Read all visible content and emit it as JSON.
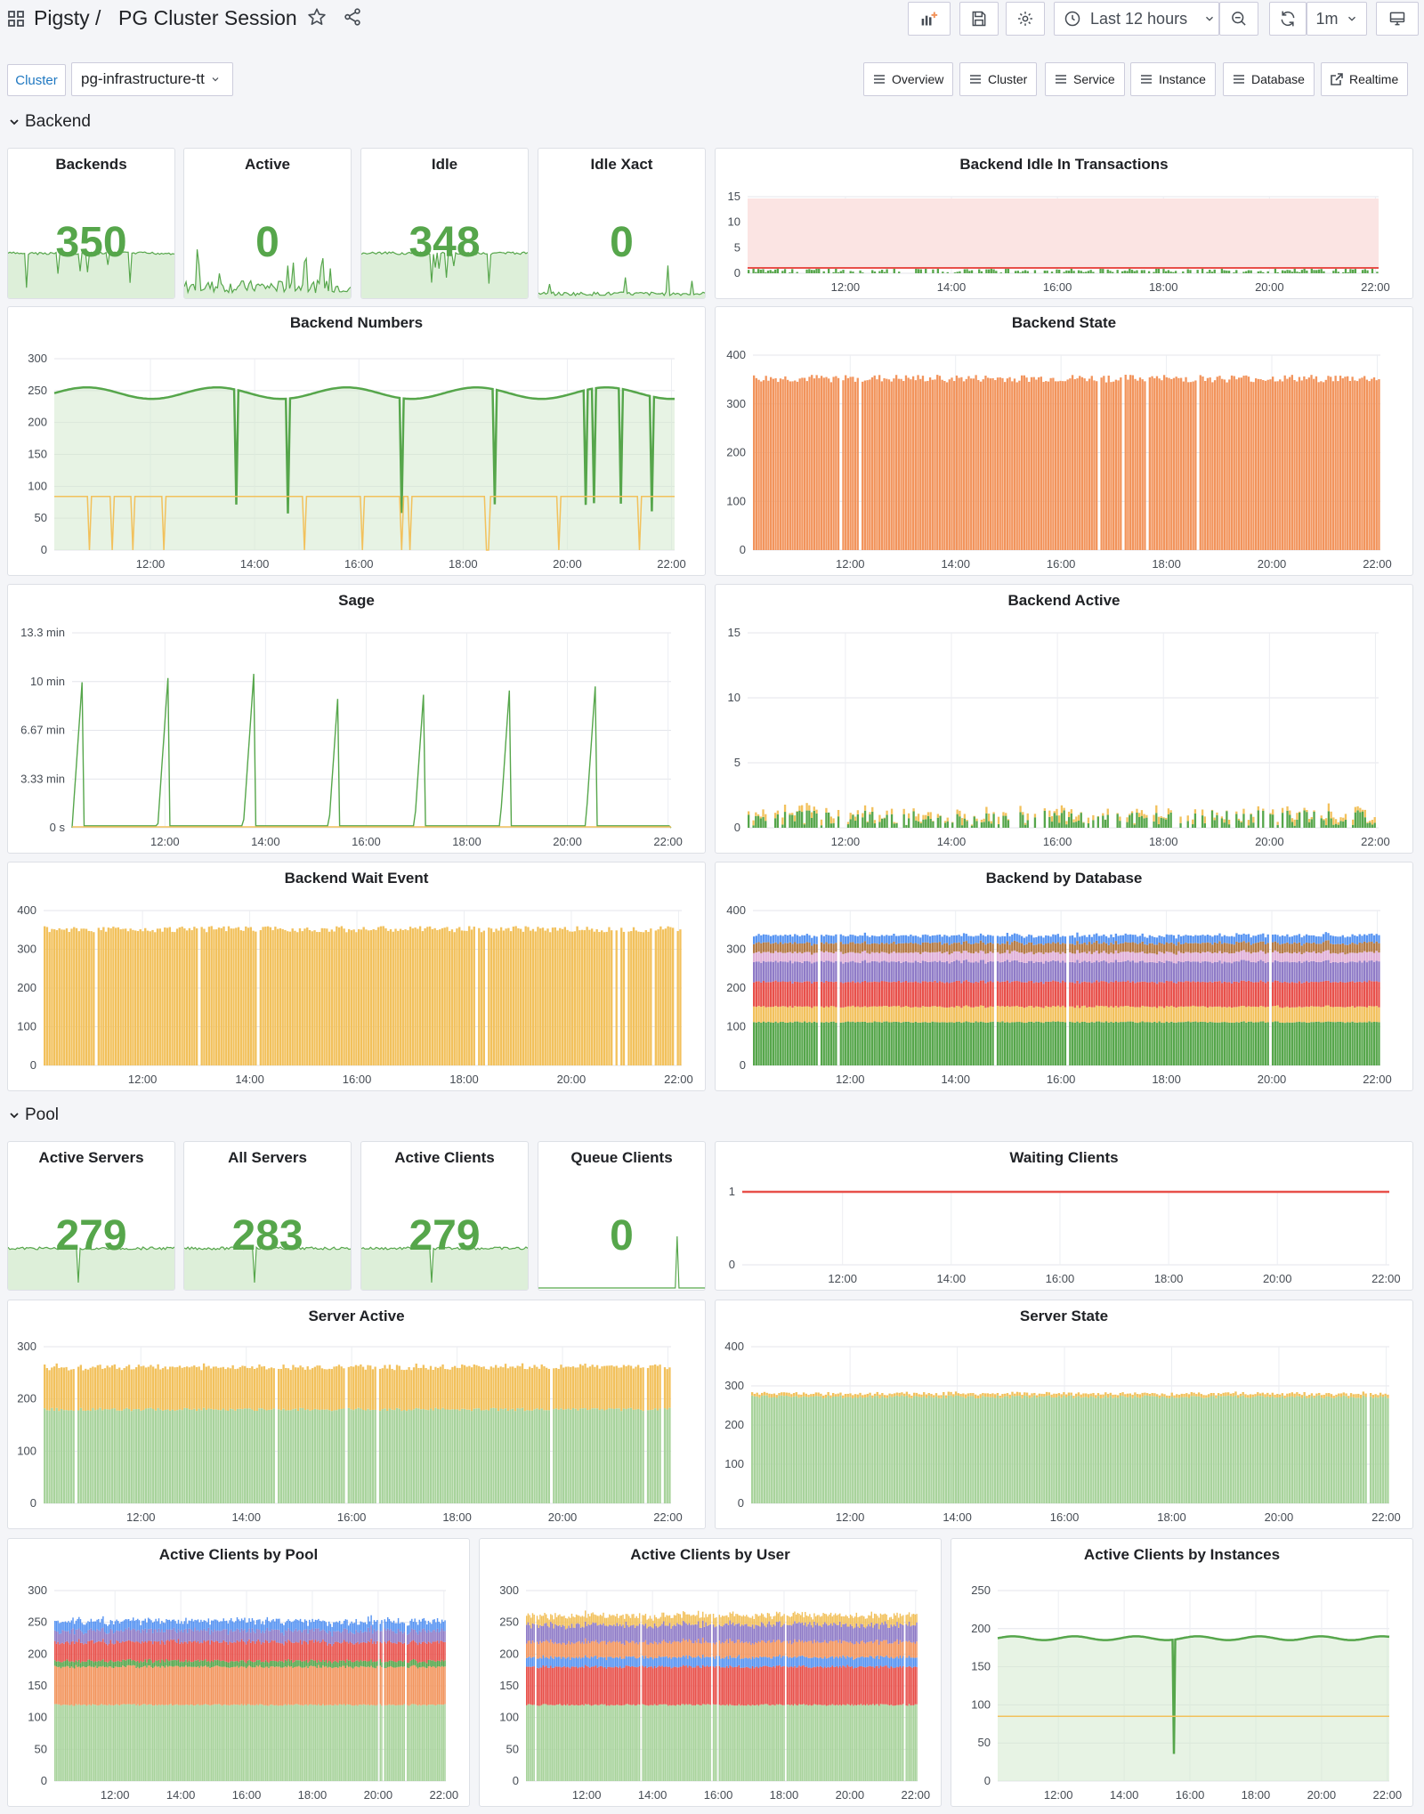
{
  "header": {
    "app_name": "Pigsty",
    "separator": "/",
    "dashboard_title": "PG Cluster Session",
    "time_range": "Last 12 hours",
    "refresh": "1m"
  },
  "variables": {
    "cluster_label": "Cluster",
    "cluster_value": "pg-infrastructure-tt"
  },
  "links": [
    "Overview",
    "Cluster",
    "Service",
    "Instance",
    "Database",
    "Realtime"
  ],
  "rows": {
    "backend": "Backend",
    "pool": "Pool"
  },
  "colors": {
    "green": "#56a64b",
    "green_fill": "#cfe8c9",
    "orange": "#f2945c",
    "yellow": "#f2c15c",
    "red": "#e8504a",
    "purple": "#8f7bc7",
    "blue": "#5794f2"
  },
  "time_ticks": [
    "12:00",
    "14:00",
    "16:00",
    "18:00",
    "20:00",
    "22:00"
  ],
  "stats": {
    "backends": {
      "title": "Backends",
      "value": "350"
    },
    "active": {
      "title": "Active",
      "value": "0"
    },
    "idle": {
      "title": "Idle",
      "value": "348"
    },
    "idle_xact": {
      "title": "Idle Xact",
      "value": "0"
    },
    "active_servers": {
      "title": "Active Servers",
      "value": "279"
    },
    "all_servers": {
      "title": "All Servers",
      "value": "283"
    },
    "active_clients": {
      "title": "Active Clients",
      "value": "279"
    },
    "queue_clients": {
      "title": "Queue Clients",
      "value": "0"
    }
  },
  "panels": {
    "idle_in_tx": {
      "title": "Backend Idle In Transactions",
      "y_ticks": [
        "0",
        "5",
        "10",
        "15"
      ]
    },
    "backend_numbers": {
      "title": "Backend Numbers",
      "y_ticks": [
        "0",
        "50",
        "100",
        "150",
        "200",
        "250",
        "300"
      ]
    },
    "backend_state": {
      "title": "Backend State",
      "y_ticks": [
        "0",
        "100",
        "200",
        "300",
        "400"
      ]
    },
    "sage": {
      "title": "Sage",
      "y_ticks": [
        "0 s",
        "3.33 min",
        "6.67 min",
        "10 min",
        "13.3 min"
      ]
    },
    "backend_active": {
      "title": "Backend Active",
      "y_ticks": [
        "0",
        "5",
        "10",
        "15"
      ]
    },
    "wait_event": {
      "title": "Backend Wait Event",
      "y_ticks": [
        "0",
        "100",
        "200",
        "300",
        "400"
      ]
    },
    "by_database": {
      "title": "Backend by Database",
      "y_ticks": [
        "0",
        "100",
        "200",
        "300",
        "400"
      ]
    },
    "waiting_clients": {
      "title": "Waiting Clients",
      "y_ticks": [
        "0",
        "1"
      ]
    },
    "server_active": {
      "title": "Server Active",
      "y_ticks": [
        "0",
        "100",
        "200",
        "300"
      ]
    },
    "server_state": {
      "title": "Server State",
      "y_ticks": [
        "0",
        "100",
        "200",
        "300",
        "400"
      ]
    },
    "clients_by_pool": {
      "title": "Active Clients by Pool",
      "y_ticks": [
        "0",
        "50",
        "100",
        "150",
        "200",
        "250",
        "300"
      ]
    },
    "clients_by_user": {
      "title": "Active Clients by User",
      "y_ticks": [
        "0",
        "50",
        "100",
        "150",
        "200",
        "250",
        "300"
      ]
    },
    "clients_by_instances": {
      "title": "Active Clients by Instances",
      "y_ticks": [
        "0",
        "50",
        "100",
        "150",
        "200",
        "250"
      ]
    }
  }
}
